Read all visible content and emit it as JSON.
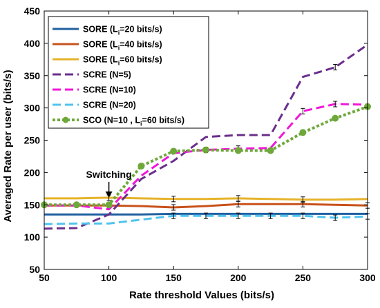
{
  "chart_data": {
    "type": "line",
    "xlabel": "Rate threshold Values (bits/s)",
    "ylabel": "Averaged Rate per user (bits/s)",
    "xlim": [
      50,
      300
    ],
    "ylim": [
      50,
      450
    ],
    "xticks": [
      50,
      100,
      150,
      200,
      250,
      300
    ],
    "yticks": [
      50,
      100,
      150,
      200,
      250,
      300,
      350,
      400,
      450
    ],
    "grid": false,
    "legend_position": "top-left",
    "annotation": {
      "text": "Switching",
      "x": 100,
      "y": 160
    },
    "x": [
      50,
      75,
      100,
      125,
      150,
      175,
      200,
      225,
      250,
      275,
      300
    ],
    "series": [
      {
        "name_parts": [
          "SORE (L",
          "i",
          "=20 bits/s)"
        ],
        "color": "#1f5fa0",
        "style": "solid",
        "marker": "none",
        "values": [
          135,
          135,
          135,
          135,
          136,
          136,
          136,
          136,
          136,
          136,
          136
        ],
        "errorbars": [
          false,
          false,
          false,
          false,
          false,
          false,
          false,
          false,
          false,
          false,
          false
        ]
      },
      {
        "name_parts": [
          "SORE (L",
          "i",
          "=40 bits/s)"
        ],
        "color": "#c8511b",
        "style": "solid",
        "marker": "none",
        "values": [
          149,
          149,
          149,
          148,
          146,
          148,
          151,
          151,
          151,
          150,
          149
        ],
        "errorbars": [
          false,
          false,
          true,
          false,
          true,
          false,
          true,
          false,
          true,
          false,
          true
        ]
      },
      {
        "name_parts": [
          "SORE (L",
          "i",
          "=60 bits/s)"
        ],
        "color": "#e6b228",
        "style": "solid",
        "marker": "none",
        "values": [
          160,
          160,
          161,
          160,
          159,
          159,
          160,
          159,
          158,
          158,
          159
        ],
        "errorbars": [
          false,
          false,
          true,
          false,
          true,
          false,
          true,
          false,
          true,
          false,
          false
        ]
      },
      {
        "name_parts": [
          "SCRE (N=5)"
        ],
        "color": "#6a2e8c",
        "style": "dashed",
        "marker": "none",
        "values": [
          113,
          114,
          135,
          190,
          218,
          255,
          258,
          258,
          348,
          363,
          398
        ],
        "errorbars": [
          false,
          false,
          false,
          false,
          false,
          false,
          false,
          false,
          false,
          true,
          false
        ]
      },
      {
        "name_parts": [
          "SCRE (N=10)"
        ],
        "color": "#f016d8",
        "style": "dashed",
        "marker": "none",
        "values": [
          149,
          149,
          143,
          195,
          230,
          235,
          237,
          238,
          295,
          306,
          305
        ],
        "errorbars": [
          false,
          false,
          false,
          false,
          false,
          true,
          true,
          false,
          true,
          true,
          false
        ]
      },
      {
        "name_parts": [
          "SCRE (N=20)"
        ],
        "color": "#4fc3ee",
        "style": "dashed",
        "marker": "none",
        "values": [
          120,
          121,
          121,
          127,
          133,
          133,
          133,
          133,
          133,
          130,
          132
        ],
        "errorbars": [
          false,
          false,
          false,
          false,
          true,
          true,
          true,
          true,
          true,
          true,
          true
        ]
      },
      {
        "name_parts": [
          "SCO (N=10 , L",
          "i",
          "=60 bits/s)"
        ],
        "color": "#6ea83a",
        "style": "dotted",
        "marker": "circle",
        "values": [
          150,
          150,
          150,
          210,
          233,
          235,
          234,
          234,
          262,
          284,
          302
        ],
        "errorbars": [
          false,
          false,
          false,
          false,
          false,
          false,
          false,
          false,
          false,
          false,
          false
        ]
      }
    ]
  }
}
